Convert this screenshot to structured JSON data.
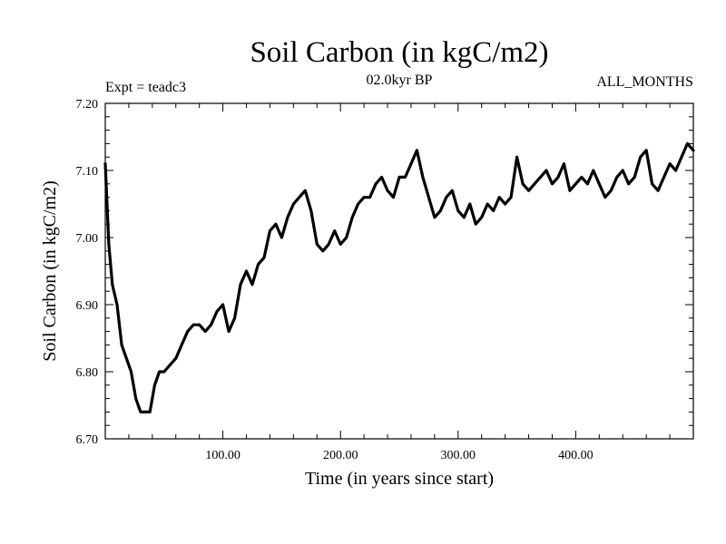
{
  "header": {
    "title": "Soil Carbon (in kgC/m2)",
    "subtitle": "02.0kyr BP",
    "expt": "Expt = teadc3",
    "months": "ALL_MONTHS"
  },
  "chart_data": {
    "type": "line",
    "title": "Soil Carbon (in kgC/m2)",
    "subtitle": "02.0kyr BP",
    "xlabel": "Time (in years since start)",
    "ylabel": "Soil Carbon (in kgC/m2)",
    "xlim": [
      0,
      500
    ],
    "ylim": [
      6.7,
      7.2
    ],
    "xticks": [
      100,
      200,
      300,
      400
    ],
    "xtick_labels": [
      "100.00",
      "200.00",
      "300.00",
      "400.00"
    ],
    "yticks": [
      6.7,
      6.8,
      6.9,
      7.0,
      7.1,
      7.2
    ],
    "ytick_labels": [
      "6.70",
      "6.80",
      "6.90",
      "7.00",
      "7.10",
      "7.20"
    ],
    "grid": false,
    "series": [
      {
        "name": "Soil Carbon",
        "color": "#000000",
        "x": [
          0,
          3,
          6,
          10,
          14,
          18,
          22,
          26,
          30,
          34,
          38,
          42,
          46,
          50,
          55,
          60,
          65,
          70,
          75,
          80,
          85,
          90,
          95,
          100,
          105,
          110,
          115,
          120,
          125,
          130,
          135,
          140,
          145,
          150,
          155,
          160,
          165,
          170,
          175,
          180,
          185,
          190,
          195,
          200,
          205,
          210,
          215,
          220,
          225,
          230,
          235,
          240,
          245,
          250,
          255,
          260,
          265,
          270,
          275,
          280,
          285,
          290,
          295,
          300,
          305,
          310,
          315,
          320,
          325,
          330,
          335,
          340,
          345,
          350,
          355,
          360,
          365,
          370,
          375,
          380,
          385,
          390,
          395,
          400,
          405,
          410,
          415,
          420,
          425,
          430,
          435,
          440,
          445,
          450,
          455,
          460,
          465,
          470,
          475,
          480,
          485,
          490,
          495,
          500
        ],
        "values": [
          7.11,
          6.99,
          6.93,
          6.9,
          6.84,
          6.82,
          6.8,
          6.76,
          6.74,
          6.74,
          6.74,
          6.78,
          6.8,
          6.8,
          6.81,
          6.82,
          6.84,
          6.86,
          6.87,
          6.87,
          6.86,
          6.87,
          6.89,
          6.9,
          6.86,
          6.88,
          6.93,
          6.95,
          6.93,
          6.96,
          6.97,
          7.01,
          7.02,
          7.0,
          7.03,
          7.05,
          7.06,
          7.07,
          7.04,
          6.99,
          6.98,
          6.99,
          7.01,
          6.99,
          7.0,
          7.03,
          7.05,
          7.06,
          7.06,
          7.08,
          7.09,
          7.07,
          7.06,
          7.09,
          7.09,
          7.11,
          7.13,
          7.09,
          7.06,
          7.03,
          7.04,
          7.06,
          7.07,
          7.04,
          7.03,
          7.05,
          7.02,
          7.03,
          7.05,
          7.04,
          7.06,
          7.05,
          7.06,
          7.12,
          7.08,
          7.07,
          7.08,
          7.09,
          7.1,
          7.08,
          7.09,
          7.11,
          7.07,
          7.08,
          7.09,
          7.08,
          7.1,
          7.08,
          7.06,
          7.07,
          7.09,
          7.1,
          7.08,
          7.09,
          7.12,
          7.13,
          7.08,
          7.07,
          7.09,
          7.11,
          7.1,
          7.12,
          7.14,
          7.13
        ]
      }
    ]
  }
}
